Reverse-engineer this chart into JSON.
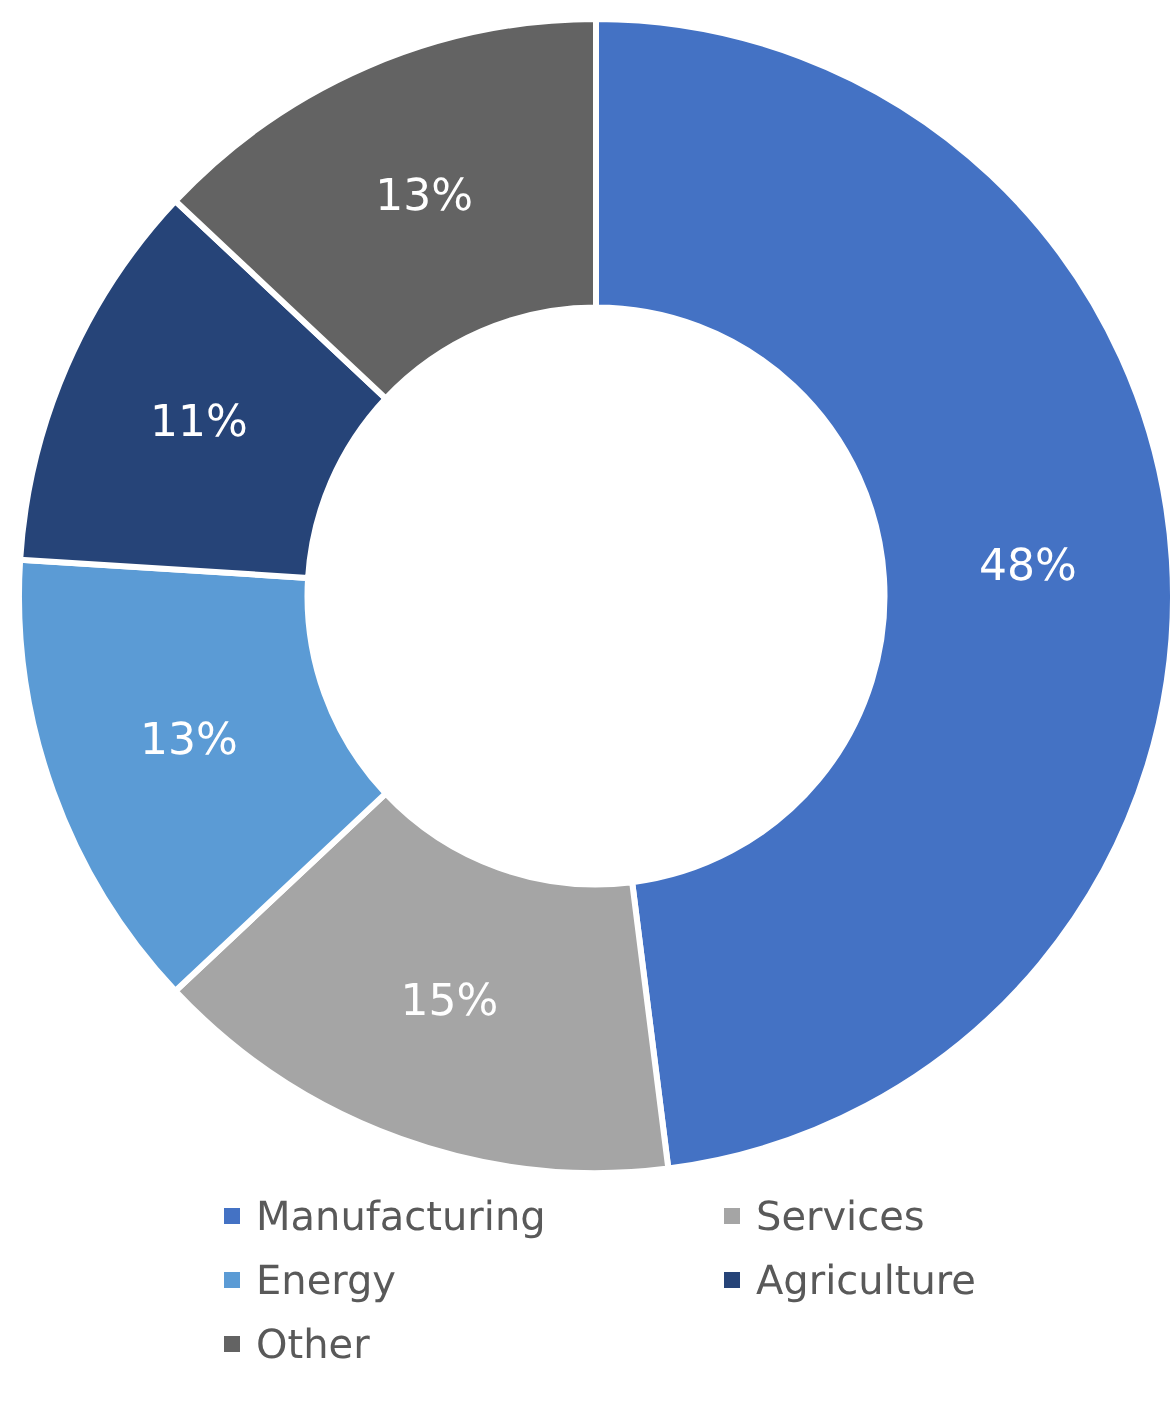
{
  "chart_data": {
    "type": "donut",
    "categories": [
      "Manufacturing",
      "Services",
      "Energy",
      "Agriculture",
      "Other"
    ],
    "values": [
      48,
      15,
      13,
      11,
      13
    ],
    "colors": [
      "#4472c4",
      "#a5a5a5",
      "#5b9bd5",
      "#264478",
      "#636363"
    ],
    "value_labels": [
      "48%",
      "15%",
      "13%",
      "11%",
      "13%"
    ],
    "legend": "bottom"
  }
}
